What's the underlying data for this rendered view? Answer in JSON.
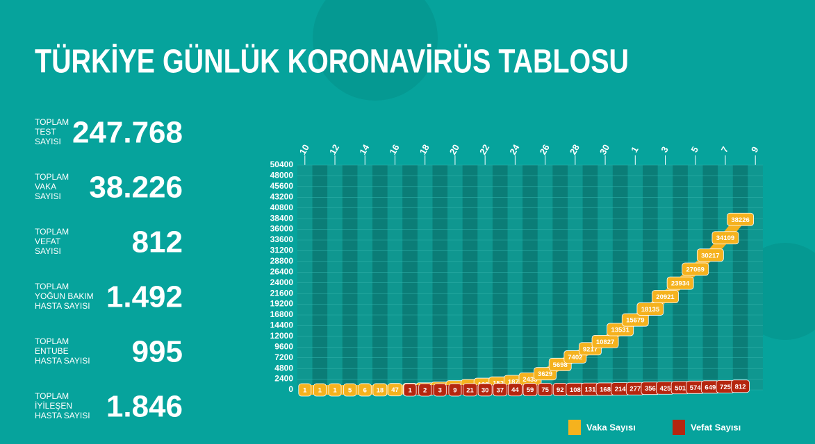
{
  "header": {
    "title": "TÜRKİYE GÜNLÜK KORONAVİRÜS TABLOSU"
  },
  "stats": [
    {
      "label": "TOPLAM\nTEST\nSAYISI",
      "value": "247.768"
    },
    {
      "label": "TOPLAM\nVAKA\nSAYISI",
      "value": "38.226"
    },
    {
      "label": "TOPLAM\nVEFAT\nSAYISI",
      "value": "812"
    },
    {
      "label": "TOPLAM\nYOĞUN BAKIM\nHASTA SAYISI",
      "value": "1.492"
    },
    {
      "label": "TOPLAM\nENTUBE\nHASTA SAYISI",
      "value": "995"
    },
    {
      "label": "TOPLAM\nİYİLEŞEN\nHASTA SAYISI",
      "value": "1.846"
    }
  ],
  "chart_data": {
    "type": "line",
    "categories": [
      "10",
      null,
      "12",
      null,
      "14",
      null,
      "16",
      null,
      "18",
      null,
      "20",
      null,
      "22",
      null,
      "24",
      null,
      "26",
      null,
      "28",
      null,
      "30",
      null,
      "1",
      null,
      "3",
      null,
      "5",
      null,
      "7",
      null,
      "9"
    ],
    "series": [
      {
        "name": "Vaka Sayısı",
        "color": "#f5b21e",
        "values": [
          1,
          1,
          1,
          5,
          6,
          18,
          47,
          98,
          191,
          359,
          670,
          947,
          1236,
          1529,
          1872,
          2433,
          3629,
          5698,
          7402,
          9217,
          10827,
          13531,
          15679,
          18135,
          20921,
          23934,
          27069,
          30217,
          34109,
          38226,
          null
        ]
      },
      {
        "name": "Vefat Sayısı",
        "color": "#b5260f",
        "values": [
          null,
          null,
          null,
          null,
          null,
          null,
          null,
          1,
          2,
          3,
          9,
          21,
          30,
          37,
          44,
          59,
          75,
          92,
          108,
          131,
          168,
          214,
          277,
          356,
          425,
          501,
          574,
          649,
          725,
          812,
          null
        ]
      }
    ],
    "ylim": [
      0,
      50400
    ],
    "yticks": [
      0,
      2400,
      4800,
      7200,
      9600,
      12000,
      14400,
      16800,
      19200,
      21600,
      24000,
      26400,
      28800,
      31200,
      33600,
      36000,
      38400,
      40800,
      43200,
      45600,
      48000,
      50400
    ],
    "grid": true,
    "legend": "bottom-right"
  }
}
